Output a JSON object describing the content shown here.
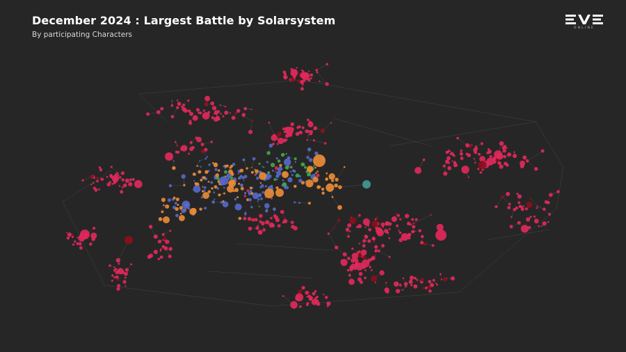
{
  "header": {
    "title": "December 2024 : Largest Battle by Solarsystem",
    "subtitle": "By participating Characters"
  },
  "logo": {
    "name": "eve-online-logo",
    "subtext": "ONLINE"
  },
  "map": {
    "background": "#262626",
    "edge_color": "#6a6a6a",
    "node_colors": {
      "crimson": "#e0285a",
      "darkred": "#8a0f1c",
      "orange": "#e98a35",
      "blue": "#5468c8",
      "green": "#3ea84a",
      "teal": "#3f9a90"
    }
  }
}
